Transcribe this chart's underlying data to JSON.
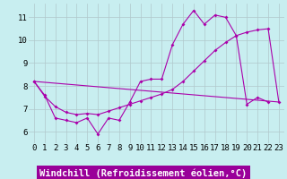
{
  "xlabel": "Windchill (Refroidissement éolien,°C)",
  "background_color": "#c8eef0",
  "line_color": "#aa00aa",
  "grid_color": "#b0c8cc",
  "xlim": [
    -0.5,
    23.5
  ],
  "ylim": [
    5.5,
    11.6
  ],
  "yticks": [
    6,
    7,
    8,
    9,
    10,
    11
  ],
  "xticks": [
    0,
    1,
    2,
    3,
    4,
    5,
    6,
    7,
    8,
    9,
    10,
    11,
    12,
    13,
    14,
    15,
    16,
    17,
    18,
    19,
    20,
    21,
    22,
    23
  ],
  "line1_x": [
    0,
    1,
    2,
    3,
    4,
    5,
    6,
    7,
    8,
    9,
    10,
    11,
    12,
    13,
    14,
    15,
    16,
    17,
    18,
    19,
    20,
    21,
    22
  ],
  "line1_y": [
    8.2,
    7.6,
    6.6,
    6.5,
    6.4,
    6.6,
    5.9,
    6.6,
    6.5,
    7.3,
    8.2,
    8.3,
    8.3,
    9.8,
    10.7,
    11.3,
    10.7,
    11.1,
    11.0,
    10.2,
    7.2,
    7.5,
    7.3
  ],
  "line2_x": [
    0,
    23
  ],
  "line2_y": [
    8.2,
    7.3
  ],
  "line3_x": [
    0,
    1,
    2,
    3,
    4,
    5,
    6,
    7,
    8,
    9,
    10,
    11,
    12,
    13,
    14,
    15,
    16,
    17,
    18,
    19,
    20,
    21,
    22,
    23
  ],
  "line3_y": [
    8.2,
    7.55,
    7.1,
    6.85,
    6.75,
    6.8,
    6.75,
    6.9,
    7.05,
    7.2,
    7.35,
    7.5,
    7.65,
    7.85,
    8.2,
    8.65,
    9.1,
    9.55,
    9.9,
    10.2,
    10.35,
    10.45,
    10.5,
    7.3
  ],
  "xlabel_fontsize": 7.5,
  "tick_fontsize": 6.5,
  "label_bg_color": "#990099",
  "label_text_color": "#ffffff"
}
